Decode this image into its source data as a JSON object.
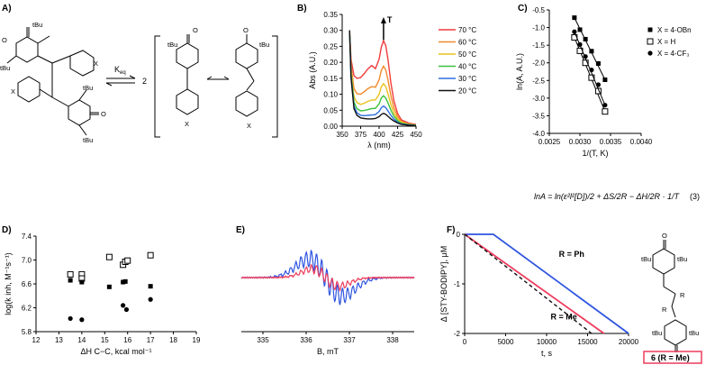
{
  "panels": {
    "A": {
      "letter": "A)",
      "keq_label": "K",
      "keq_sub": "eq",
      "stoich": "2",
      "tbu": "tBu",
      "x_sub": "X",
      "o_atom": "O"
    },
    "B": {
      "letter": "B)",
      "chart_data": {
        "type": "line",
        "title": "",
        "xlabel": "λ (nm)",
        "ylabel": "Abs (A.U.)",
        "xlim": [
          350,
          450
        ],
        "ylim": [
          0,
          0.35
        ],
        "xticks": [
          350,
          375,
          400,
          425,
          450
        ],
        "yticks": [
          0.0,
          0.05,
          0.1,
          0.15,
          0.2,
          0.25,
          0.3,
          0.35
        ],
        "arrow_label": "T",
        "series": [
          {
            "name": "70 °C",
            "color": "#f03c3c",
            "x": [
              360,
              362,
              366,
              370,
              375,
              380,
              385,
              390,
              395,
              400,
              403,
              406,
              409,
              412,
              416,
              420,
              425,
              430,
              440,
              450
            ],
            "y": [
              0.3,
              0.21,
              0.158,
              0.15,
              0.152,
              0.165,
              0.18,
              0.19,
              0.18,
              0.21,
              0.248,
              0.268,
              0.252,
              0.21,
              0.135,
              0.08,
              0.04,
              0.02,
              0.01,
              0.005
            ]
          },
          {
            "name": "60 °C",
            "color": "#f08a2a",
            "x": [
              360,
              362,
              366,
              370,
              375,
              380,
              385,
              390,
              395,
              400,
              403,
              406,
              409,
              412,
              416,
              420,
              425,
              430,
              440,
              450
            ],
            "y": [
              0.3,
              0.19,
              0.118,
              0.102,
              0.1,
              0.108,
              0.118,
              0.124,
              0.122,
              0.145,
              0.175,
              0.188,
              0.176,
              0.145,
              0.095,
              0.058,
              0.03,
              0.015,
              0.007,
              0.004
            ]
          },
          {
            "name": "50 °C",
            "color": "#e8c21c",
            "x": [
              360,
              362,
              366,
              370,
              375,
              380,
              385,
              390,
              395,
              400,
              403,
              406,
              409,
              412,
              416,
              420,
              425,
              430,
              440,
              450
            ],
            "y": [
              0.3,
              0.175,
              0.092,
              0.074,
              0.068,
              0.072,
              0.078,
              0.082,
              0.082,
              0.1,
              0.124,
              0.133,
              0.124,
              0.102,
              0.068,
              0.042,
              0.022,
              0.012,
              0.006,
              0.003
            ]
          },
          {
            "name": "40 °C",
            "color": "#3cc23c",
            "x": [
              360,
              362,
              366,
              370,
              375,
              380,
              385,
              390,
              395,
              400,
              403,
              406,
              409,
              412,
              416,
              420,
              425,
              430,
              440,
              450
            ],
            "y": [
              0.3,
              0.165,
              0.075,
              0.055,
              0.048,
              0.049,
              0.052,
              0.055,
              0.056,
              0.07,
              0.088,
              0.095,
              0.088,
              0.073,
              0.05,
              0.031,
              0.017,
              0.009,
              0.005,
              0.003
            ]
          },
          {
            "name": "30 °C",
            "color": "#2f6fe0",
            "x": [
              360,
              362,
              366,
              370,
              375,
              380,
              385,
              390,
              395,
              400,
              403,
              406,
              409,
              412,
              416,
              420,
              425,
              430,
              440,
              450
            ],
            "y": [
              0.3,
              0.158,
              0.063,
              0.042,
              0.034,
              0.033,
              0.034,
              0.035,
              0.036,
              0.046,
              0.058,
              0.063,
              0.058,
              0.048,
              0.034,
              0.022,
              0.012,
              0.007,
              0.004,
              0.002
            ]
          },
          {
            "name": "20 °C",
            "color": "#111111",
            "x": [
              360,
              362,
              366,
              370,
              375,
              380,
              385,
              390,
              395,
              400,
              403,
              406,
              409,
              412,
              416,
              420,
              425,
              430,
              440,
              450
            ],
            "y": [
              0.3,
              0.152,
              0.055,
              0.034,
              0.026,
              0.024,
              0.023,
              0.023,
              0.024,
              0.03,
              0.037,
              0.04,
              0.037,
              0.031,
              0.023,
              0.016,
              0.01,
              0.006,
              0.003,
              0.002
            ]
          }
        ]
      }
    },
    "C": {
      "letter": "C)",
      "equation": "lnA = ln(ε²l²[D])/2 + ΔS/2R − ΔH/2R · 1/T",
      "eq_number": "(3)",
      "chart_data": {
        "type": "scatter",
        "xlabel": "1/(T, K)",
        "ylabel": "ln(A, A.U.)",
        "xlim": [
          0.0025,
          0.004
        ],
        "ylim": [
          -4.0,
          -0.5
        ],
        "xticks": [
          "0.0025",
          "0.0030",
          "0.0035",
          "0.0040"
        ],
        "yticks": [
          "-0.5",
          "-1.0",
          "-1.5",
          "-2.0",
          "-2.5",
          "-3.0",
          "-3.5",
          "-4.0"
        ],
        "series": [
          {
            "name": "X = 4-OBn",
            "marker": "filled-square",
            "x": [
              0.00291,
              0.003,
              0.00309,
              0.00319,
              0.0033,
              0.00341
            ],
            "y": [
              -0.72,
              -1.06,
              -1.33,
              -1.67,
              -2.02,
              -2.48
            ]
          },
          {
            "name": "X = H",
            "marker": "open-square",
            "x": [
              0.00291,
              0.003,
              0.00309,
              0.00319,
              0.0033,
              0.00341
            ],
            "y": [
              -1.28,
              -1.66,
              -2.0,
              -2.42,
              -2.8,
              -3.38
            ]
          },
          {
            "name": "X = 4-CF₃",
            "marker": "filled-circle",
            "x": [
              0.00291,
              0.003,
              0.00309,
              0.00319,
              0.0033,
              0.00341
            ],
            "y": [
              -1.12,
              -1.48,
              -1.82,
              -2.2,
              -2.62,
              -3.2
            ]
          }
        ]
      }
    },
    "D": {
      "letter": "D)",
      "chart_data": {
        "type": "scatter",
        "xlabel": "ΔH C−C, kcal mol⁻¹",
        "ylabel": "log(k inh, M⁻¹s⁻¹)",
        "xlim": [
          12,
          19
        ],
        "ylim": [
          5.8,
          7.4
        ],
        "xticks": [
          "12",
          "13",
          "14",
          "15",
          "16",
          "17",
          "18",
          "19"
        ],
        "yticks": [
          "5.8",
          "6.2",
          "6.6",
          "7.0",
          "7.4"
        ],
        "series": [
          {
            "name": "open squares",
            "marker": "open-square",
            "x": [
              13.5,
              14.0,
              14.0,
              15.2,
              15.8,
              15.9,
              16.0,
              17.0
            ],
            "y": [
              6.76,
              6.76,
              6.69,
              7.05,
              6.92,
              6.97,
              6.99,
              7.08
            ]
          },
          {
            "name": "filled squares",
            "marker": "filled-square",
            "x": [
              13.5,
              14.0,
              15.2,
              15.8,
              15.9,
              17.0
            ],
            "y": [
              6.66,
              6.63,
              6.55,
              6.63,
              6.64,
              6.56
            ]
          },
          {
            "name": "filled circles",
            "marker": "filled-circle",
            "x": [
              13.5,
              14.0,
              15.8,
              15.95,
              17.0
            ],
            "y": [
              6.02,
              6.0,
              6.24,
              6.17,
              6.34
            ]
          }
        ]
      }
    },
    "E": {
      "letter": "E)",
      "chart_data": {
        "type": "line",
        "xlabel": "B, mT",
        "ylabel": "",
        "xlim": [
          334.5,
          338.5
        ],
        "xticks": [
          "335",
          "336",
          "337",
          "338"
        ],
        "series": [
          {
            "name": "blue spectrum",
            "color": "#2f55e0"
          },
          {
            "name": "red spectrum",
            "color": "#ee3b5c"
          }
        ]
      }
    },
    "F": {
      "letter": "F)",
      "compound_label": "6 (R = Me)",
      "r_label": "R",
      "chart_data": {
        "type": "line",
        "xlabel": "t, s",
        "ylabel": "Δ [STY-BODIPY], μM",
        "xlim": [
          0,
          20000
        ],
        "ylim": [
          -2,
          0
        ],
        "xticks": [
          "0",
          "5000",
          "10000",
          "15000",
          "20000"
        ],
        "yticks": [
          "0",
          "-1",
          "-2"
        ],
        "series": [
          {
            "name": "R = Ph",
            "color": "#2f55e0",
            "x": [
              0,
              3500,
              20000
            ],
            "y": [
              0,
              0,
              -2.0
            ]
          },
          {
            "name": "R = Me",
            "color": "#ee3b5c",
            "x": [
              0,
              17000
            ],
            "y": [
              0,
              -2.0
            ]
          },
          {
            "name": "uninhibited",
            "color": "#111111",
            "dash": true,
            "x": [
              0,
              15500
            ],
            "y": [
              0,
              -2.0
            ]
          }
        ]
      }
    }
  }
}
